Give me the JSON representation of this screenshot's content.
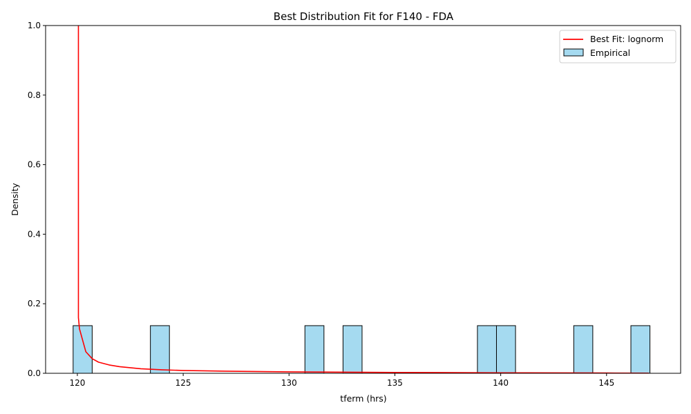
{
  "chart_data": {
    "type": "bar",
    "title": "Best Distribution Fit for F140 - FDA",
    "xlabel": "tferm (hrs)",
    "ylabel": "Density",
    "xlim": [
      118.5,
      148.5
    ],
    "ylim": [
      0,
      1.0
    ],
    "xticks": [
      120,
      125,
      130,
      135,
      140,
      145
    ],
    "yticks": [
      0.0,
      0.2,
      0.4,
      0.6,
      0.8,
      1.0
    ],
    "grid": false,
    "legend_position": "top-right",
    "histogram": {
      "name": "Empirical",
      "color": "#87ceeb",
      "edge_color": "#000000",
      "bins": [
        {
          "x0": 119.8,
          "x1": 120.7,
          "density": 0.137
        },
        {
          "x0": 123.45,
          "x1": 124.35,
          "density": 0.137
        },
        {
          "x0": 130.75,
          "x1": 131.65,
          "density": 0.137
        },
        {
          "x0": 132.55,
          "x1": 133.45,
          "density": 0.137
        },
        {
          "x0": 138.9,
          "x1": 139.8,
          "density": 0.137
        },
        {
          "x0": 139.8,
          "x1": 140.7,
          "density": 0.137
        },
        {
          "x0": 143.45,
          "x1": 144.35,
          "density": 0.137
        },
        {
          "x0": 146.15,
          "x1": 147.05,
          "density": 0.137
        }
      ]
    },
    "series": [
      {
        "name": "Best Fit: lognorm",
        "type": "line",
        "color": "#ff0000",
        "x": [
          120.05,
          120.05,
          120.1,
          120.4,
          120.7,
          121.0,
          121.5,
          122.0,
          123.0,
          124.0,
          125.0,
          127.0,
          130.0,
          135.0,
          140.0,
          145.0,
          147.0
        ],
        "y": [
          1.0,
          0.16,
          0.128,
          0.062,
          0.042,
          0.032,
          0.024,
          0.019,
          0.013,
          0.01,
          0.008,
          0.006,
          0.004,
          0.0025,
          0.0015,
          0.0008,
          0.0005
        ]
      }
    ],
    "legend": [
      "Best Fit: lognorm",
      "Empirical"
    ]
  }
}
